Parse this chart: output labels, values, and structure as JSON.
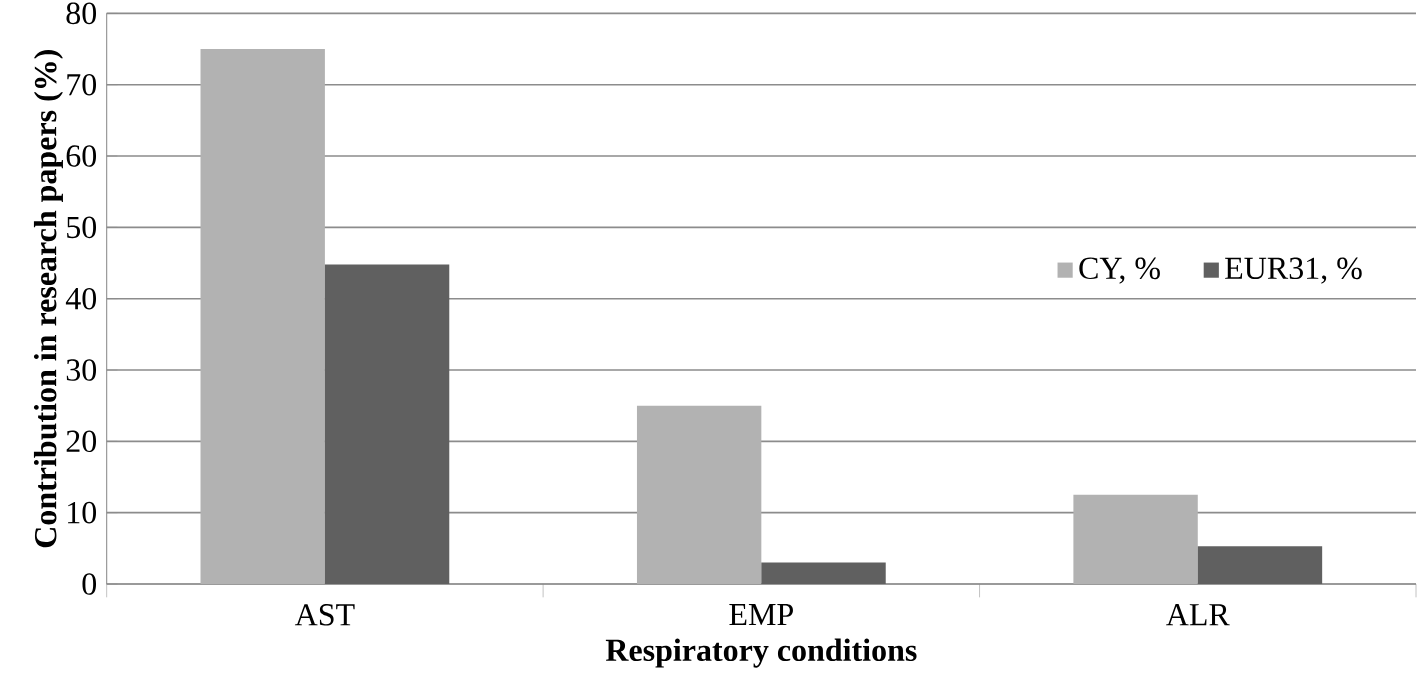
{
  "chart_data": {
    "type": "bar",
    "xlabel": "Respiratory conditions",
    "ylabel": "Contribution in research papers (%)",
    "categories": [
      "AST",
      "EMP",
      "ALR"
    ],
    "series": [
      {
        "name": "CY, %",
        "color": "#b2b2b2",
        "values": [
          75,
          25,
          12.5
        ]
      },
      {
        "name": "EUR31, %",
        "color": "#606060",
        "values": [
          44.8,
          3,
          5.3
        ]
      }
    ],
    "ylim": [
      0,
      80
    ],
    "yticks": [
      0,
      10,
      20,
      30,
      40,
      50,
      60,
      70,
      80
    ],
    "grid": "y",
    "legend": "right"
  }
}
